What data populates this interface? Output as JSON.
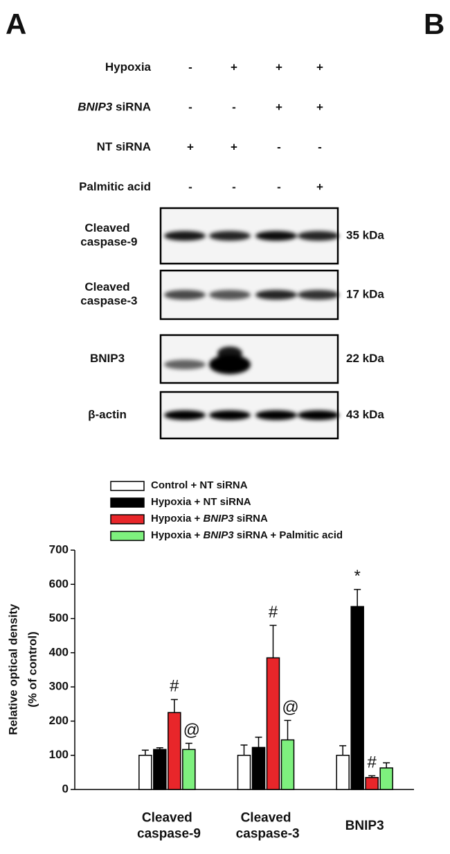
{
  "italic_term": "BNIP3",
  "panel_labels": [
    "A",
    "B"
  ],
  "treatments": [
    {
      "label": "Hypoxia",
      "signs": [
        "-",
        "+",
        "+",
        "+"
      ]
    },
    {
      "label": "BNIP3 siRNA",
      "signs": [
        "-",
        "-",
        "+",
        "+"
      ]
    },
    {
      "label": "NT siRNA",
      "signs": [
        "+",
        "+",
        "-",
        "-"
      ]
    },
    {
      "label": "Palmitic acid",
      "signs": [
        "-",
        "-",
        "-",
        "+"
      ]
    }
  ],
  "blots": [
    {
      "label": "Cleaved caspase-9",
      "size": "35 kDa"
    },
    {
      "label": "Cleaved caspase-3",
      "size": "17 kDa"
    },
    {
      "label": "BNIP3",
      "size": "22 kDa"
    },
    {
      "label": "β-actin",
      "size": "43 kDa"
    }
  ],
  "chart_data": {
    "type": "bar",
    "ylabel": [
      "Relative optical density",
      "(% of control)"
    ],
    "categories": [
      "Cleaved caspase-9",
      "Cleaved caspase-3",
      "BNIP3"
    ],
    "series": [
      {
        "name": "Control + NT siRNA",
        "color": "#ffffff",
        "values": [
          100,
          100,
          100
        ],
        "errors": [
          15,
          30,
          28
        ],
        "markers": [
          null,
          null,
          null
        ]
      },
      {
        "name": "Hypoxia + NT siRNA",
        "color": "#000000",
        "values": [
          117,
          123,
          535
        ],
        "errors": [
          5,
          30,
          50
        ],
        "markers": [
          null,
          null,
          "*"
        ]
      },
      {
        "name": "Hypoxia + BNIP3 siRNA",
        "color": "#e8262a",
        "values": [
          225,
          385,
          35
        ],
        "errors": [
          38,
          95,
          5
        ],
        "markers": [
          "#",
          "#",
          "#"
        ]
      },
      {
        "name": "Hypoxia + BNIP3 siRNA + Palmitic acid",
        "color": "#7ef07e",
        "values": [
          117,
          145,
          63
        ],
        "errors": [
          18,
          57,
          15
        ],
        "markers": [
          "@",
          "@",
          null
        ]
      }
    ],
    "ylim": [
      0,
      700
    ],
    "yticks": [
      0,
      100,
      200,
      300,
      400,
      500,
      600,
      700
    ]
  }
}
